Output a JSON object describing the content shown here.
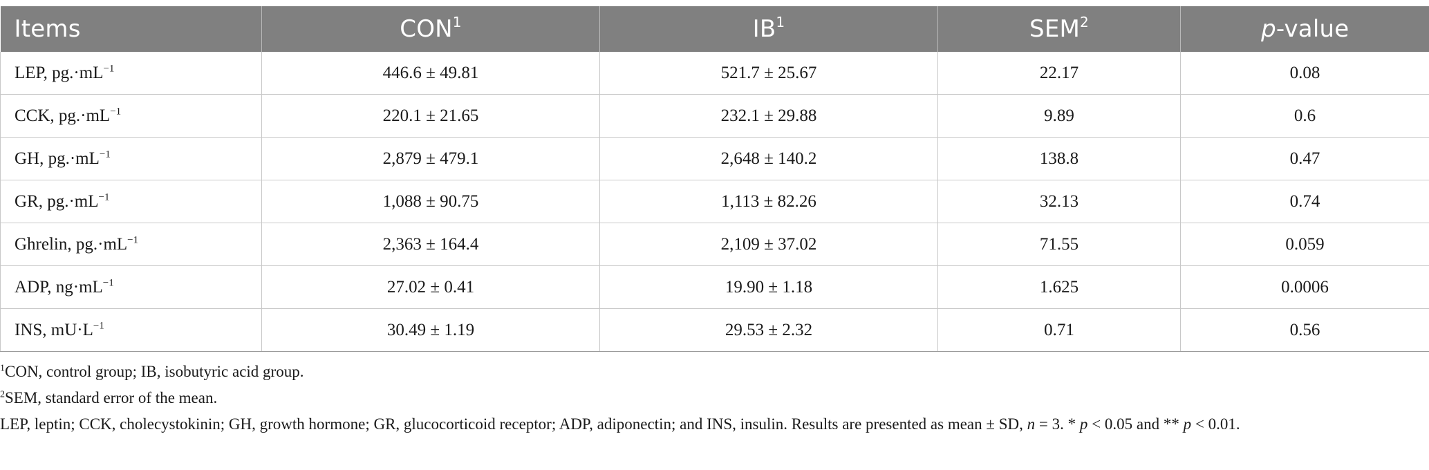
{
  "table": {
    "headers": [
      {
        "text": "Items",
        "sup": ""
      },
      {
        "text": "CON",
        "sup": "1"
      },
      {
        "text": "IB",
        "sup": "1"
      },
      {
        "text": "SEM",
        "sup": "2"
      },
      {
        "text": "-value",
        "prefix_italic": "p",
        "sup": ""
      }
    ],
    "rows": [
      {
        "item": "LEP, pg.·mL",
        "unit_sup": "−1",
        "con": "446.6 ± 49.81",
        "ib": "521.7 ± 25.67",
        "sem": "22.17",
        "p": "0.08"
      },
      {
        "item": "CCK, pg.·mL",
        "unit_sup": "−1",
        "con": "220.1 ± 21.65",
        "ib": "232.1 ± 29.88",
        "sem": "9.89",
        "p": "0.6"
      },
      {
        "item": "GH, pg.·mL",
        "unit_sup": "−1",
        "con": "2,879 ± 479.1",
        "ib": "2,648 ± 140.2",
        "sem": "138.8",
        "p": "0.47"
      },
      {
        "item": "GR, pg.·mL",
        "unit_sup": "−1",
        "con": "1,088 ± 90.75",
        "ib": "1,113 ± 82.26",
        "sem": "32.13",
        "p": "0.74"
      },
      {
        "item": "Ghrelin, pg.·mL",
        "unit_sup": "−1",
        "con": "2,363 ± 164.4",
        "ib": "2,109 ± 37.02",
        "sem": "71.55",
        "p": "0.059"
      },
      {
        "item": "ADP, ng·mL",
        "unit_sup": "−1",
        "con": "27.02 ± 0.41",
        "ib": "19.90 ± 1.18",
        "sem": "1.625",
        "p": "0.0006"
      },
      {
        "item": "INS, mU·L",
        "unit_sup": "−1",
        "con": "30.49 ± 1.19",
        "ib": "29.53 ± 2.32",
        "sem": "0.71",
        "p": "0.56"
      }
    ]
  },
  "footnotes": {
    "note1_marker": "1",
    "note1_text": "CON, control group; IB, isobutyric acid group.",
    "note2_marker": "2",
    "note2_text": "SEM, standard error of the mean.",
    "note3_part1": "LEP, leptin; CCK, cholecystokinin; GH, growth hormone; GR, glucocorticoid receptor; ADP, adiponectin; and INS, insulin. Results are presented as mean ± SD, ",
    "note3_n": "n",
    "note3_part2": " = 3. * ",
    "note3_p1": "p",
    "note3_part3": " < 0.05 and ** ",
    "note3_p2": "p",
    "note3_part4": " < 0.01."
  }
}
